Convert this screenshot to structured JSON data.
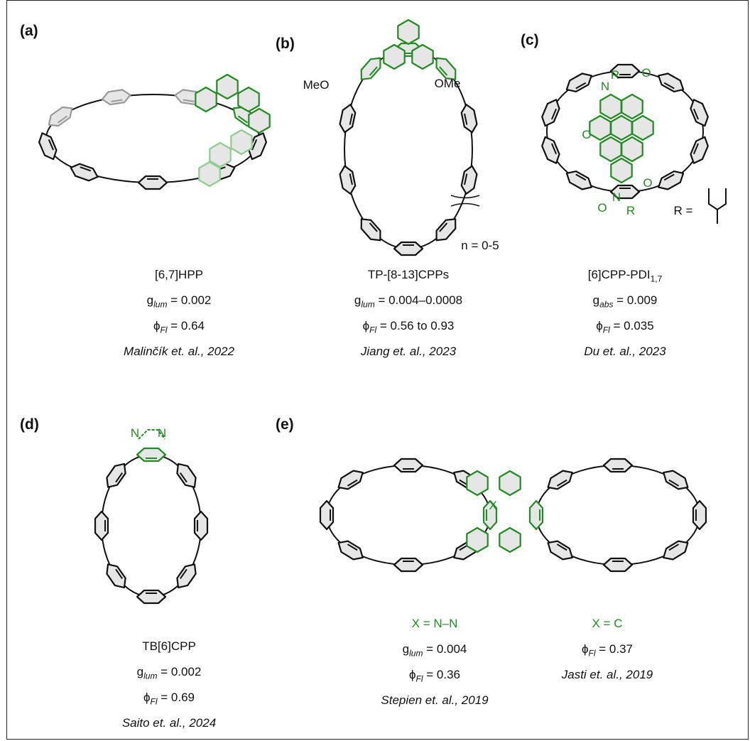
{
  "panels": [
    {
      "label": "(a)",
      "annotations": [],
      "columns": [
        [
          [
            {
              "text": "[6,7]HPP"
            }
          ],
          [
            {
              "text": "g"
            },
            {
              "text": "lum",
              "sub": true,
              "italic": true
            },
            {
              "text": " = 0.002"
            }
          ],
          [
            {
              "text": "ϕ"
            },
            {
              "text": "Fl",
              "sub": true,
              "italic": true
            },
            {
              "text": " = 0.64"
            }
          ],
          [
            {
              "text": "Malinčík et. al., 2022",
              "italic": true
            }
          ]
        ]
      ]
    },
    {
      "label": "(b)",
      "annotations": [
        "MeO",
        "OMe",
        "n = 0-5"
      ],
      "columns": [
        [
          [
            {
              "text": "TP-[8-13]CPPs"
            }
          ],
          [
            {
              "text": "g"
            },
            {
              "text": "lum",
              "sub": true,
              "italic": true
            },
            {
              "text": " = 0.004–0.0008"
            }
          ],
          [
            {
              "text": "ϕ"
            },
            {
              "text": "Fl",
              "sub": true,
              "italic": true
            },
            {
              "text": " = 0.56 to 0.93"
            }
          ],
          [
            {
              "text": "Jiang et. al., 2023",
              "italic": true
            }
          ]
        ]
      ]
    },
    {
      "label": "(c)",
      "annotations": [
        "R",
        "N",
        "O",
        "O",
        "O",
        "N",
        "O",
        "R",
        "R ="
      ],
      "columns": [
        [
          [
            {
              "text": "[6]CPP-PDI"
            },
            {
              "text": "1,7",
              "sub": true
            }
          ],
          [
            {
              "text": "g"
            },
            {
              "text": "abs",
              "sub": true,
              "italic": true
            },
            {
              "text": " = 0.009"
            }
          ],
          [
            {
              "text": "ϕ"
            },
            {
              "text": "Fl",
              "sub": true,
              "italic": true
            },
            {
              "text": " = 0.035"
            }
          ],
          [
            {
              "text": "Du et. al., 2023",
              "italic": true
            }
          ]
        ]
      ]
    },
    {
      "label": "(d)",
      "annotations": [
        "N",
        "N"
      ],
      "columns": [
        [
          [
            {
              "text": "TB[6]CPP"
            }
          ],
          [
            {
              "text": "g"
            },
            {
              "text": "lum",
              "sub": true,
              "italic": true
            },
            {
              "text": " = 0.002"
            }
          ],
          [
            {
              "text": "ϕ"
            },
            {
              "text": "Fl",
              "sub": true,
              "italic": true
            },
            {
              "text": " = 0.69"
            }
          ],
          [
            {
              "text": "Saito et. al., 2024",
              "italic": true
            }
          ]
        ]
      ]
    },
    {
      "label": "(e)",
      "annotations": [
        "X"
      ],
      "columns": [
        [
          [
            {
              "text": "X = N–N",
              "color": "#228b22"
            }
          ],
          [
            {
              "text": "g"
            },
            {
              "text": "lum",
              "sub": true,
              "italic": true
            },
            {
              "text": " = 0.004"
            }
          ],
          [
            {
              "text": "ϕ"
            },
            {
              "text": "Fl",
              "sub": true,
              "italic": true
            },
            {
              "text": " = 0.36"
            }
          ],
          [
            {
              "text": "Stepien et. al., 2019",
              "italic": true
            }
          ]
        ],
        [
          [
            {
              "text": "X = C",
              "color": "#228b22"
            }
          ],
          [
            {
              "text": "ϕ"
            },
            {
              "text": "Fl",
              "sub": true,
              "italic": true
            },
            {
              "text": " = 0.37"
            }
          ],
          [
            {
              "text": "Jasti et. al., 2019",
              "italic": true
            }
          ]
        ]
      ]
    }
  ]
}
